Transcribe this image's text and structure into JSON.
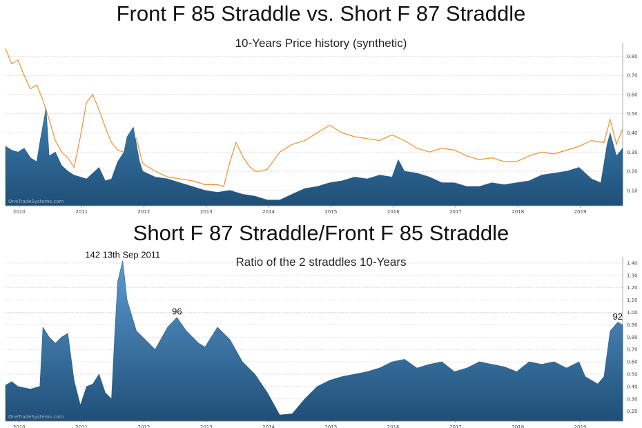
{
  "chart_data": [
    {
      "type": "area",
      "title": "Front F 85 Straddle vs. Short F 87 Straddle",
      "subtitle": "10-Years Price history (synthetic)",
      "xlim": [
        2009.8,
        2019.7
      ],
      "ylim": [
        0.02,
        0.87
      ],
      "y_ticks": [
        0.1,
        0.2,
        0.3,
        0.4,
        0.5,
        0.6,
        0.7,
        0.8
      ],
      "x_ticks": [
        2010,
        2011,
        2012,
        2013,
        2014,
        2015,
        2016,
        2017,
        2018,
        2019
      ],
      "y_axis_side": "right",
      "grid": true,
      "watermark": "OneTradeSystems.com",
      "series": [
        {
          "kind": "line",
          "color": "#f28e2b",
          "x": [
            2009.8,
            2009.9,
            2010.0,
            2010.1,
            2010.2,
            2010.3,
            2010.4,
            2010.5,
            2010.6,
            2010.7,
            2010.8,
            2010.9,
            2011.0,
            2011.1,
            2011.2,
            2011.3,
            2011.4,
            2011.5,
            2011.6,
            2011.7,
            2011.8,
            2011.9,
            2012.0,
            2012.2,
            2012.4,
            2012.6,
            2012.8,
            2013.0,
            2013.2,
            2013.3,
            2013.4,
            2013.5,
            2013.6,
            2013.7,
            2013.8,
            2013.9,
            2014.0,
            2014.2,
            2014.4,
            2014.6,
            2014.8,
            2014.95,
            2015.0,
            2015.2,
            2015.4,
            2015.6,
            2015.8,
            2016.0,
            2016.2,
            2016.4,
            2016.6,
            2016.8,
            2017.0,
            2017.2,
            2017.4,
            2017.6,
            2017.8,
            2018.0,
            2018.2,
            2018.4,
            2018.6,
            2018.8,
            2019.0,
            2019.2,
            2019.4,
            2019.5,
            2019.6,
            2019.7
          ],
          "y": [
            0.84,
            0.76,
            0.78,
            0.7,
            0.63,
            0.65,
            0.57,
            0.47,
            0.36,
            0.3,
            0.27,
            0.22,
            0.38,
            0.56,
            0.6,
            0.52,
            0.43,
            0.35,
            0.31,
            0.3,
            0.34,
            0.37,
            0.24,
            0.2,
            0.17,
            0.16,
            0.15,
            0.13,
            0.13,
            0.12,
            0.25,
            0.35,
            0.28,
            0.23,
            0.2,
            0.2,
            0.21,
            0.3,
            0.34,
            0.36,
            0.4,
            0.43,
            0.44,
            0.4,
            0.38,
            0.37,
            0.36,
            0.39,
            0.36,
            0.32,
            0.3,
            0.32,
            0.31,
            0.28,
            0.26,
            0.27,
            0.25,
            0.25,
            0.28,
            0.3,
            0.29,
            0.31,
            0.33,
            0.36,
            0.35,
            0.47,
            0.34,
            0.42
          ]
        },
        {
          "kind": "area",
          "color": "#2e6a96",
          "x": [
            2009.8,
            2009.9,
            2010.0,
            2010.1,
            2010.2,
            2010.3,
            2010.35,
            2010.45,
            2010.5,
            2010.6,
            2010.7,
            2010.8,
            2010.9,
            2011.0,
            2011.1,
            2011.2,
            2011.3,
            2011.4,
            2011.5,
            2011.6,
            2011.7,
            2011.75,
            2011.85,
            2011.95,
            2012.0,
            2012.2,
            2012.4,
            2012.6,
            2012.8,
            2013.0,
            2013.2,
            2013.4,
            2013.6,
            2013.8,
            2014.0,
            2014.2,
            2014.4,
            2014.6,
            2014.8,
            2015.0,
            2015.2,
            2015.4,
            2015.6,
            2015.8,
            2016.0,
            2016.1,
            2016.2,
            2016.4,
            2016.6,
            2016.8,
            2017.0,
            2017.2,
            2017.4,
            2017.6,
            2017.8,
            2018.0,
            2018.2,
            2018.4,
            2018.6,
            2018.8,
            2019.0,
            2019.2,
            2019.35,
            2019.45,
            2019.5,
            2019.6,
            2019.7
          ],
          "y": [
            0.33,
            0.31,
            0.3,
            0.32,
            0.27,
            0.25,
            0.35,
            0.53,
            0.28,
            0.3,
            0.23,
            0.2,
            0.18,
            0.17,
            0.16,
            0.19,
            0.22,
            0.15,
            0.16,
            0.25,
            0.3,
            0.38,
            0.43,
            0.25,
            0.2,
            0.17,
            0.16,
            0.14,
            0.12,
            0.1,
            0.09,
            0.1,
            0.08,
            0.07,
            0.05,
            0.05,
            0.08,
            0.11,
            0.12,
            0.14,
            0.15,
            0.17,
            0.16,
            0.18,
            0.17,
            0.26,
            0.2,
            0.19,
            0.17,
            0.14,
            0.14,
            0.12,
            0.12,
            0.14,
            0.13,
            0.14,
            0.15,
            0.18,
            0.19,
            0.2,
            0.22,
            0.16,
            0.14,
            0.34,
            0.4,
            0.28,
            0.32
          ]
        }
      ]
    },
    {
      "type": "area",
      "title": "Short F 87 Straddle/Front F 85 Straddle",
      "subtitle": "Ratio of the 2 straddles 10-Years",
      "xlim": [
        2009.8,
        2019.7
      ],
      "ylim": [
        0.12,
        1.45
      ],
      "y_ticks": [
        0.2,
        0.3,
        0.4,
        0.5,
        0.6,
        0.7,
        0.8,
        0.9,
        1.0,
        1.1,
        1.2,
        1.3,
        1.4
      ],
      "x_ticks": [
        2010,
        2011,
        2012,
        2013,
        2014,
        2015,
        2016,
        2017,
        2018,
        2019
      ],
      "y_axis_side": "right",
      "grid": true,
      "watermark": "OneTradeSystems.com",
      "annotations": [
        {
          "text": "142 13th Sep 2011",
          "x": 2011.68,
          "y": 1.42
        },
        {
          "text": "96",
          "x": 2012.55,
          "y": 0.96
        },
        {
          "text": "92",
          "x": 2019.62,
          "y": 0.92
        }
      ],
      "series": [
        {
          "kind": "area",
          "color": "#2e6a96",
          "x": [
            2009.8,
            2009.9,
            2010.0,
            2010.2,
            2010.35,
            2010.4,
            2010.5,
            2010.6,
            2010.7,
            2010.8,
            2010.9,
            2011.0,
            2011.1,
            2011.2,
            2011.3,
            2011.4,
            2011.5,
            2011.55,
            2011.6,
            2011.68,
            2011.75,
            2011.9,
            2012.0,
            2012.2,
            2012.4,
            2012.55,
            2012.7,
            2012.9,
            2013.0,
            2013.2,
            2013.4,
            2013.6,
            2013.8,
            2014.0,
            2014.2,
            2014.4,
            2014.6,
            2014.8,
            2015.0,
            2015.2,
            2015.4,
            2015.6,
            2015.8,
            2016.0,
            2016.2,
            2016.4,
            2016.6,
            2016.8,
            2017.0,
            2017.2,
            2017.4,
            2017.6,
            2017.8,
            2018.0,
            2018.2,
            2018.4,
            2018.6,
            2018.8,
            2019.0,
            2019.1,
            2019.2,
            2019.3,
            2019.4,
            2019.5,
            2019.62,
            2019.7
          ],
          "y": [
            0.41,
            0.44,
            0.4,
            0.38,
            0.4,
            0.88,
            0.8,
            0.75,
            0.8,
            0.83,
            0.45,
            0.25,
            0.4,
            0.42,
            0.5,
            0.35,
            0.3,
            0.8,
            1.25,
            1.42,
            1.1,
            0.85,
            0.8,
            0.7,
            0.88,
            0.96,
            0.85,
            0.75,
            0.72,
            0.88,
            0.78,
            0.6,
            0.5,
            0.35,
            0.17,
            0.18,
            0.3,
            0.4,
            0.45,
            0.48,
            0.5,
            0.52,
            0.55,
            0.6,
            0.62,
            0.55,
            0.58,
            0.6,
            0.52,
            0.55,
            0.6,
            0.58,
            0.56,
            0.52,
            0.6,
            0.58,
            0.6,
            0.55,
            0.6,
            0.48,
            0.45,
            0.42,
            0.48,
            0.85,
            0.92,
            0.9
          ]
        }
      ]
    }
  ]
}
